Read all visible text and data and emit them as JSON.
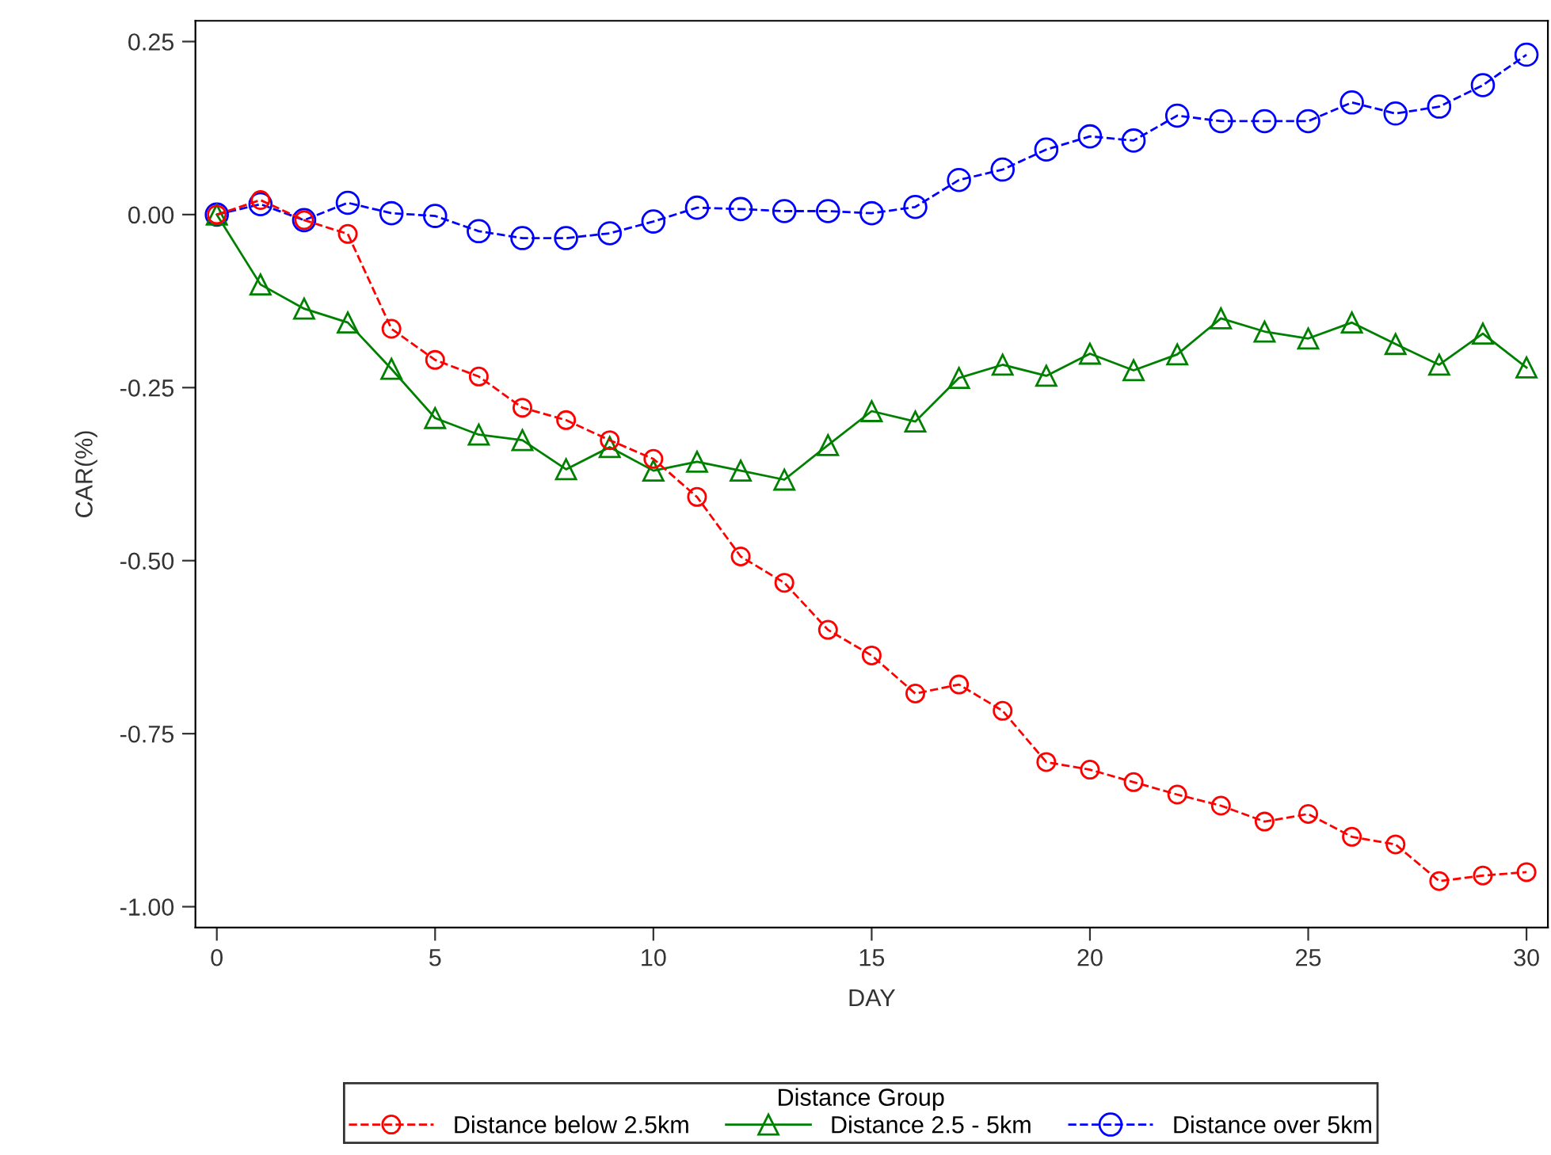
{
  "chart_data": {
    "type": "line",
    "xlabel": "DAY",
    "ylabel": "CAR(%)",
    "legend_title": "Distance Group",
    "x": [
      0,
      1,
      2,
      3,
      4,
      5,
      6,
      7,
      8,
      9,
      10,
      11,
      12,
      13,
      14,
      15,
      16,
      17,
      18,
      19,
      20,
      21,
      22,
      23,
      24,
      25,
      26,
      27,
      28,
      29,
      30
    ],
    "series": [
      {
        "name": "Distance below 2.5km",
        "color": "#ff0000",
        "marker": "circle",
        "line_style": "dashed",
        "values": [
          0,
          0.021,
          -0.008,
          -0.028,
          -0.165,
          -0.21,
          -0.234,
          -0.279,
          -0.297,
          -0.326,
          -0.353,
          -0.408,
          -0.494,
          -0.532,
          -0.6,
          -0.637,
          -0.692,
          -0.679,
          -0.717,
          -0.791,
          -0.802,
          -0.82,
          -0.838,
          -0.854,
          -0.877,
          -0.866,
          -0.899,
          -0.91,
          -0.963,
          -0.955,
          -0.95
        ]
      },
      {
        "name": "Distance 2.5 - 5km",
        "color": "#008000",
        "marker": "triangle",
        "line_style": "solid",
        "values": [
          0,
          -0.101,
          -0.136,
          -0.156,
          -0.223,
          -0.294,
          -0.318,
          -0.326,
          -0.368,
          -0.336,
          -0.37,
          -0.357,
          -0.37,
          -0.383,
          -0.333,
          -0.284,
          -0.299,
          -0.236,
          -0.217,
          -0.233,
          -0.201,
          -0.225,
          -0.202,
          -0.15,
          -0.169,
          -0.179,
          -0.156,
          -0.187,
          -0.217,
          -0.172,
          -0.221
        ]
      },
      {
        "name": "Distance over 5km",
        "color": "#0000ff",
        "marker": "circle",
        "line_style": "dashed",
        "values": [
          0,
          0.015,
          -0.008,
          0.017,
          0.002,
          -0.002,
          -0.024,
          -0.034,
          -0.034,
          -0.027,
          -0.01,
          0.01,
          0.008,
          0.005,
          0.005,
          0.002,
          0.011,
          0.05,
          0.065,
          0.094,
          0.113,
          0.107,
          0.143,
          0.135,
          0.135,
          0.135,
          0.162,
          0.146,
          0.156,
          0.187,
          0.231
        ]
      }
    ],
    "xlim": [
      -0.49,
      30.49
    ],
    "ylim": [
      -1.03,
      0.28
    ],
    "xticks": [
      0,
      5,
      10,
      15,
      20,
      25,
      30
    ],
    "yticks": [
      {
        "value": 0.25,
        "label": "0.25"
      },
      {
        "value": 0,
        "label": "0.00"
      },
      {
        "value": -0.25,
        "label": "-0.25"
      },
      {
        "value": -0.5,
        "label": "-0.50"
      },
      {
        "value": -0.75,
        "label": "-0.75"
      },
      {
        "value": -1,
        "label": "-1.00"
      }
    ],
    "grid": false,
    "legend": "bottom"
  }
}
